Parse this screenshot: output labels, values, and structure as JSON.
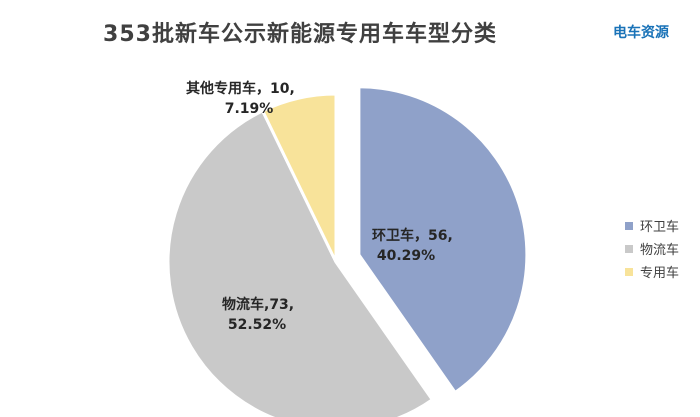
{
  "brand": {
    "text": "电车资源"
  },
  "chart_data": {
    "type": "pie",
    "title": "353批新车公示新能源专用车车型分类",
    "slices": [
      {
        "name": "环卫车",
        "value": 56,
        "percent": "40.29%",
        "label_line1": "环卫车，56,",
        "label_line2": "40.29%",
        "color": "#8fa1c9",
        "exploded": true
      },
      {
        "name": "物流车",
        "value": 73,
        "percent": "52.52%",
        "label_line1": "物流车,73,",
        "label_line2": "52.52%",
        "color": "#c9c9c9",
        "exploded": false
      },
      {
        "name": "其他专用车",
        "value": 10,
        "percent": "7.19%",
        "label_line1": "其他专用车，10,",
        "label_line2": "7.19%",
        "color": "#f8e39a",
        "exploded": false
      }
    ],
    "legend": {
      "position": "right",
      "items": [
        {
          "name": "环卫车",
          "color": "#8fa1c9"
        },
        {
          "name": "物流车",
          "color": "#c9c9c9"
        },
        {
          "name": "专用车",
          "color": "#f8e39a"
        }
      ]
    }
  }
}
